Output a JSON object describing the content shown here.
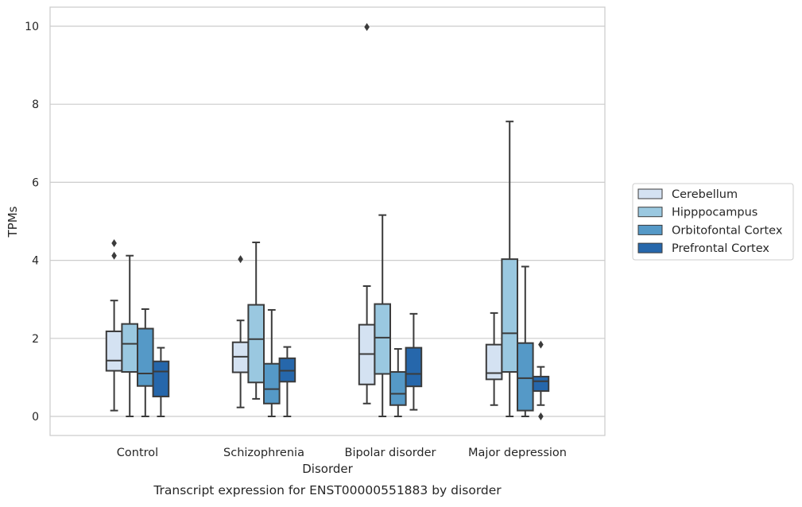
{
  "chart_data": {
    "type": "box",
    "title": "Transcript expression for ENST00000551883 by disorder",
    "xlabel": "Disorder",
    "ylabel": "TPMs",
    "ylim": [
      -0.48,
      10.48
    ],
    "yticks": [
      0,
      2,
      4,
      6,
      8,
      10
    ],
    "grid": "horizontal",
    "legend_position": "right",
    "categories": [
      "Control",
      "Schizophrenia",
      "Bipolar disorder",
      "Major depression"
    ],
    "series": [
      {
        "name": "Cerebellum",
        "color": "#d4e2f2",
        "boxes": [
          {
            "whislo": 0.15,
            "q1": 1.17,
            "med": 1.43,
            "q3": 2.18,
            "whishi": 2.97,
            "fliers": [
              4.12,
              4.44
            ]
          },
          {
            "whislo": 0.23,
            "q1": 1.13,
            "med": 1.53,
            "q3": 1.9,
            "whishi": 2.46,
            "fliers": [
              4.03
            ]
          },
          {
            "whislo": 0.33,
            "q1": 0.82,
            "med": 1.6,
            "q3": 2.35,
            "whishi": 3.34,
            "fliers": [
              9.98
            ]
          },
          {
            "whislo": 0.29,
            "q1": 0.95,
            "med": 1.11,
            "q3": 1.84,
            "whishi": 2.65,
            "fliers": []
          }
        ]
      },
      {
        "name": "Hipppocampus",
        "color": "#9ac8e0",
        "boxes": [
          {
            "whislo": 0.0,
            "q1": 1.14,
            "med": 1.86,
            "q3": 2.37,
            "whishi": 4.12,
            "fliers": []
          },
          {
            "whislo": 0.45,
            "q1": 0.87,
            "med": 1.98,
            "q3": 2.86,
            "whishi": 4.46,
            "fliers": []
          },
          {
            "whislo": 0.0,
            "q1": 1.09,
            "med": 2.02,
            "q3": 2.88,
            "whishi": 5.16,
            "fliers": []
          },
          {
            "whislo": 0.0,
            "q1": 1.14,
            "med": 2.13,
            "q3": 4.03,
            "whishi": 7.56,
            "fliers": []
          }
        ]
      },
      {
        "name": "Orbitofontal Cortex",
        "color": "#5599c7",
        "boxes": [
          {
            "whislo": 0.0,
            "q1": 0.78,
            "med": 1.1,
            "q3": 2.25,
            "whishi": 2.75,
            "fliers": []
          },
          {
            "whislo": 0.0,
            "q1": 0.33,
            "med": 0.7,
            "q3": 1.35,
            "whishi": 2.73,
            "fliers": []
          },
          {
            "whislo": 0.0,
            "q1": 0.29,
            "med": 0.58,
            "q3": 1.14,
            "whishi": 1.73,
            "fliers": []
          },
          {
            "whislo": 0.0,
            "q1": 0.15,
            "med": 0.98,
            "q3": 1.88,
            "whishi": 3.84,
            "fliers": []
          }
        ]
      },
      {
        "name": "Prefrontal Cortex",
        "color": "#2667ab",
        "boxes": [
          {
            "whislo": 0.0,
            "q1": 0.51,
            "med": 1.15,
            "q3": 1.41,
            "whishi": 1.76,
            "fliers": []
          },
          {
            "whislo": 0.0,
            "q1": 0.89,
            "med": 1.17,
            "q3": 1.49,
            "whishi": 1.78,
            "fliers": []
          },
          {
            "whislo": 0.17,
            "q1": 0.77,
            "med": 1.09,
            "q3": 1.76,
            "whishi": 2.63,
            "fliers": []
          },
          {
            "whislo": 0.29,
            "q1": 0.65,
            "med": 0.9,
            "q3": 1.02,
            "whishi": 1.27,
            "fliers": [
              0.0,
              1.84
            ]
          }
        ]
      }
    ]
  }
}
